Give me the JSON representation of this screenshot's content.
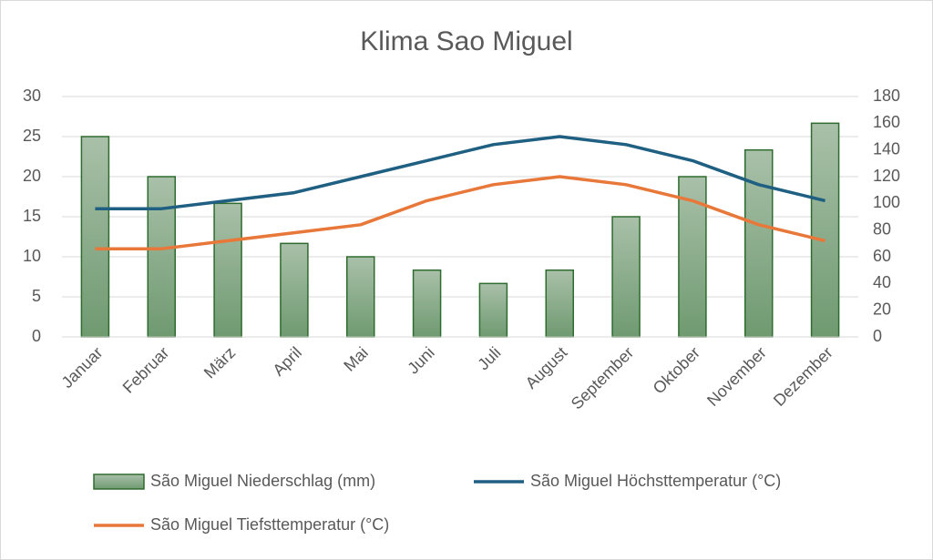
{
  "chart_data": {
    "type": "combo",
    "title": "Klima Sao Miguel",
    "categories": [
      "Januar",
      "Februar",
      "März",
      "April",
      "Mai",
      "Juni",
      "Juli",
      "August",
      "September",
      "Oktober",
      "November",
      "Dezember"
    ],
    "series": [
      {
        "name": "São Miguel Niederschlag (mm)",
        "type": "bar",
        "axis": "y2",
        "color": "#2e6b2e",
        "values": [
          150,
          120,
          100,
          70,
          60,
          50,
          40,
          50,
          90,
          120,
          140,
          160
        ]
      },
      {
        "name": "São Miguel Höchsttemperatur (°C)",
        "type": "line",
        "color": "#1f5f82",
        "values": [
          16,
          16,
          17,
          18,
          20,
          22,
          24,
          25,
          24,
          22,
          19,
          17
        ]
      },
      {
        "name": "São Miguel Tiefsttemperatur (°C)",
        "type": "line",
        "color": "#e8773a",
        "values": [
          11,
          11,
          12,
          13,
          14,
          17,
          19,
          20,
          19,
          17,
          14,
          12
        ]
      }
    ],
    "ylim": [
      0,
      30
    ],
    "yticks": [
      0,
      5,
      10,
      15,
      20,
      25,
      30
    ],
    "y2lim": [
      0,
      180
    ],
    "y2ticks": [
      0,
      20,
      40,
      60,
      80,
      100,
      120,
      140,
      160,
      180
    ],
    "grid": true
  }
}
